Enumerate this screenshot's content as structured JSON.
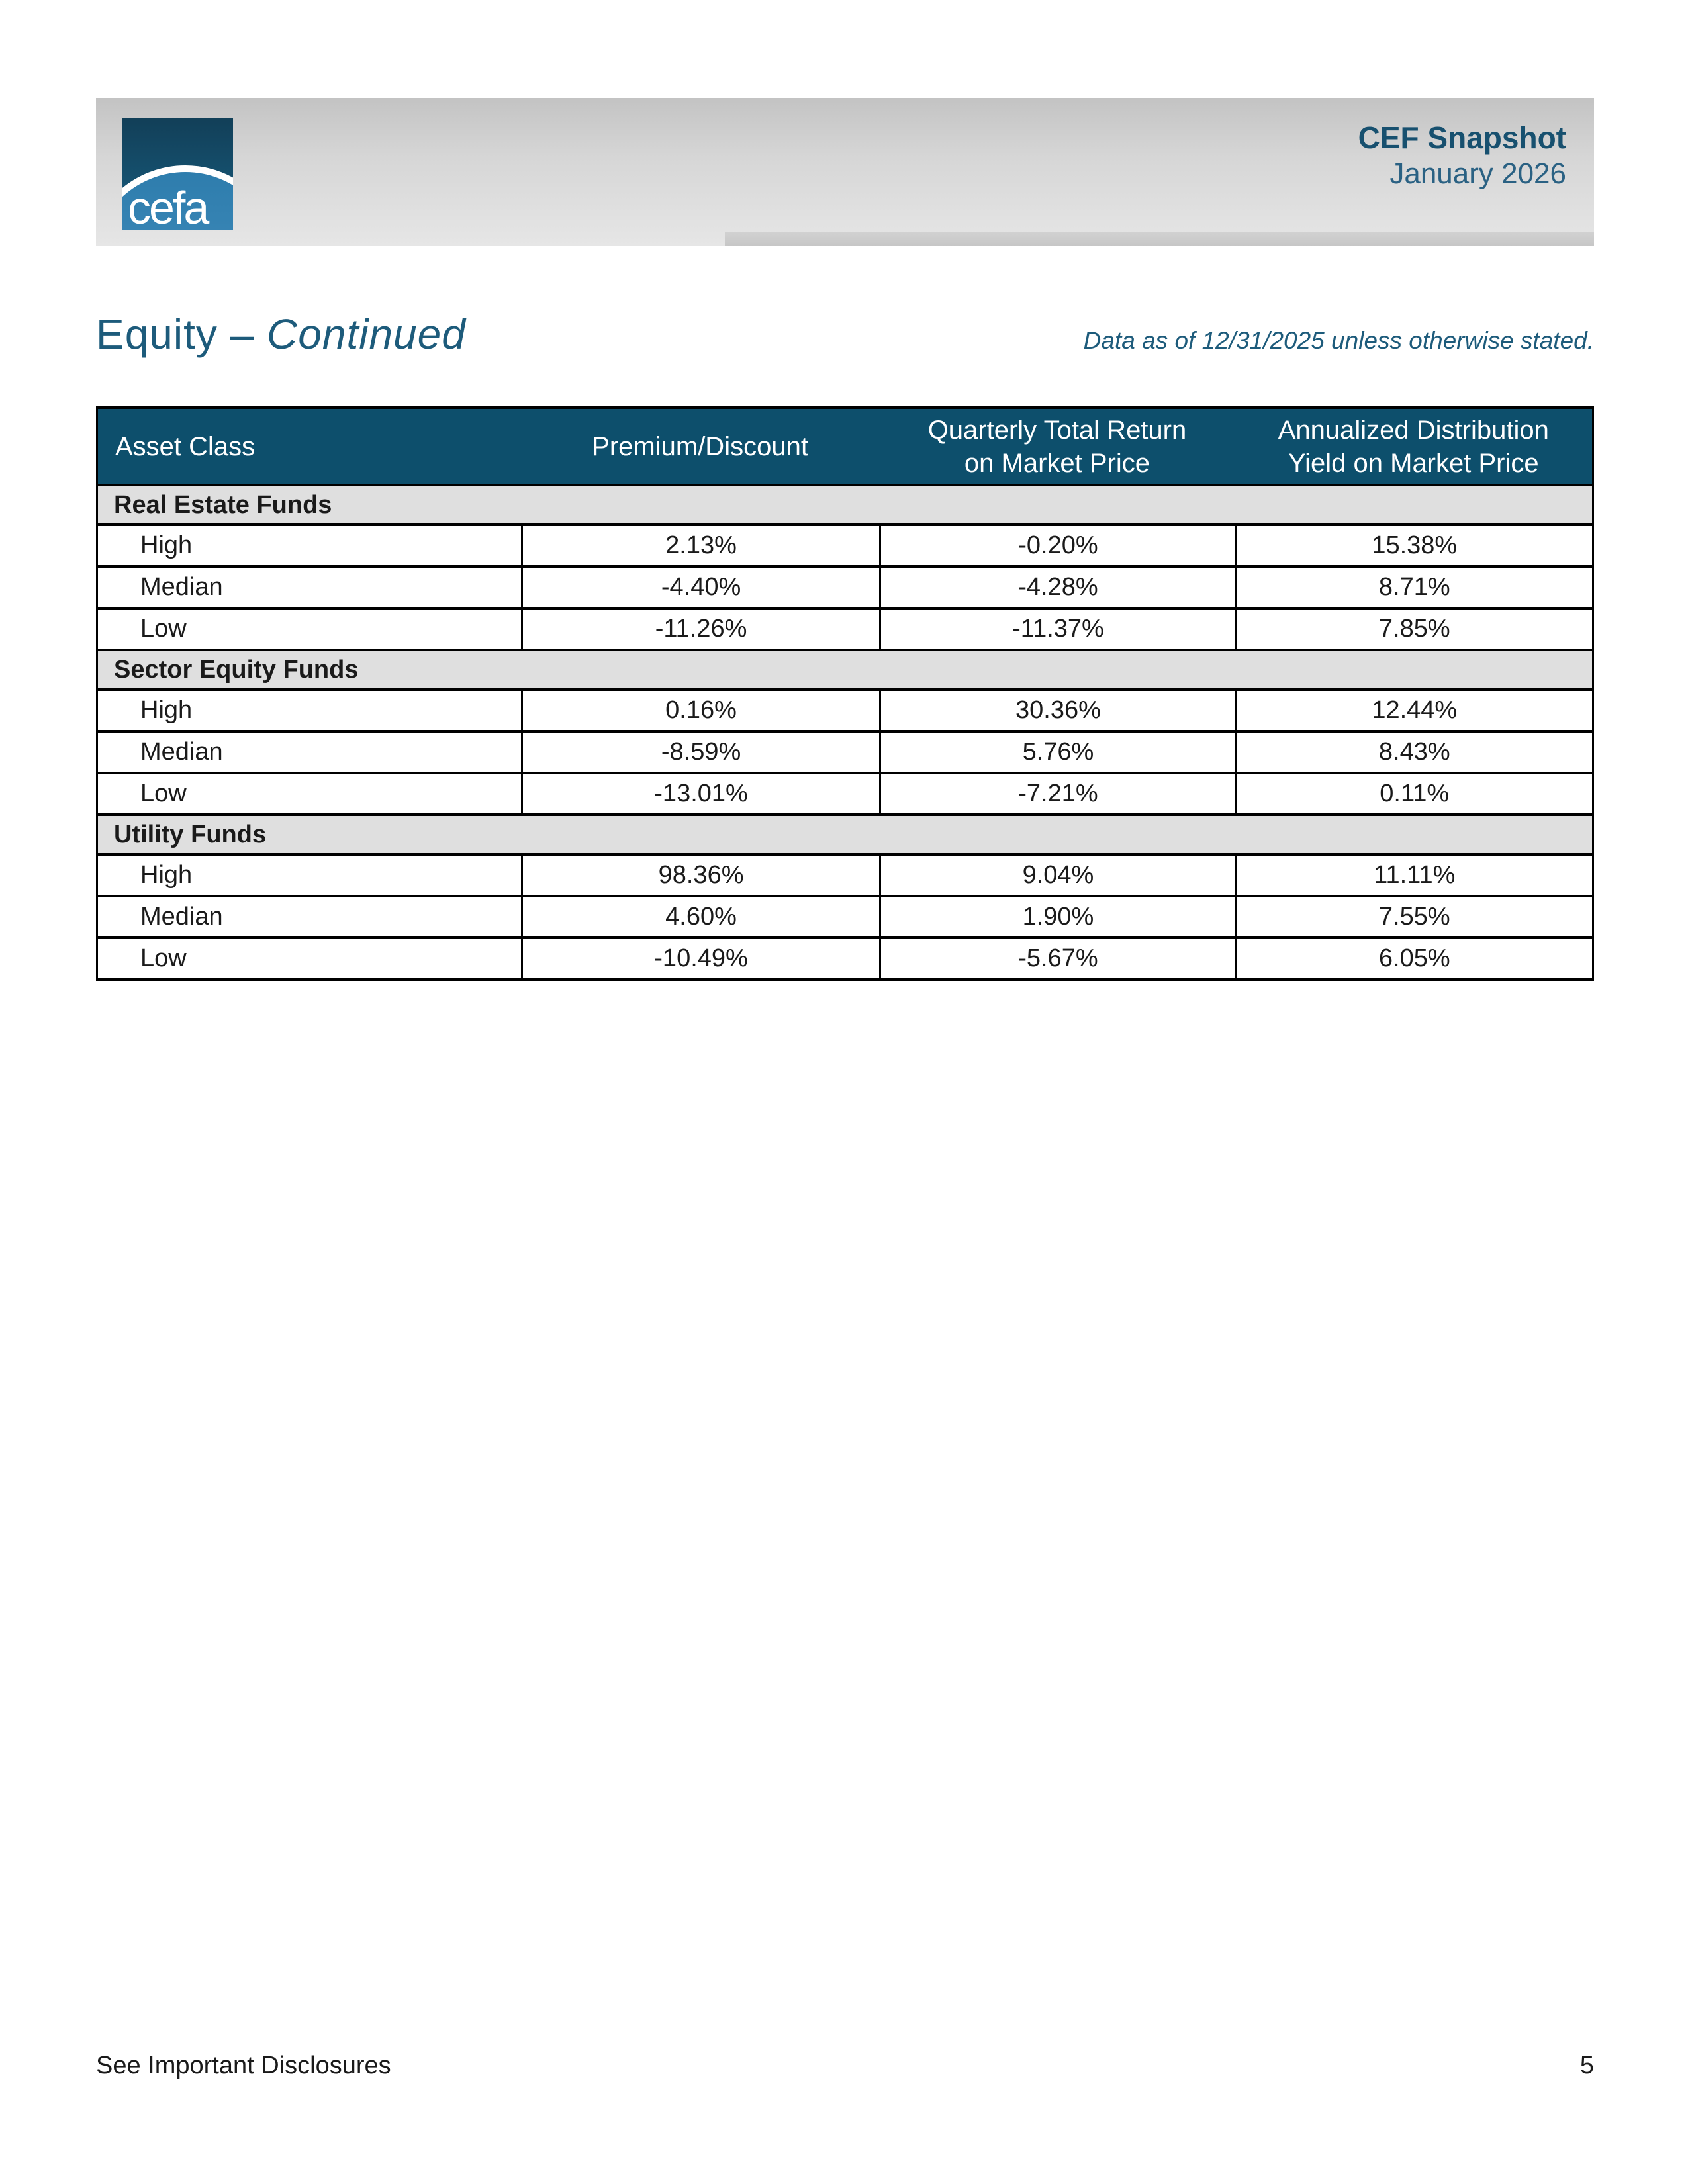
{
  "header": {
    "logo_text": "cefa",
    "product": "CEF Snapshot",
    "date": "January 2026"
  },
  "page": {
    "title_main": "Equity – ",
    "title_em": "Continued",
    "data_note": "Data as of 12/31/2025 unless otherwise stated.",
    "footer_left": "See Important Disclosures",
    "page_number": "5"
  },
  "colors": {
    "table_header_bg": "#0d4f6c",
    "accent_text": "#1d5b7b",
    "section_row_bg": "#dfdfdf",
    "logo_dark_blue": "#15506e",
    "logo_circle_blue": "#2e7dad"
  },
  "table": {
    "columns": [
      "Asset Class",
      "Premium/Discount",
      "Quarterly Total Return\non Market Price",
      "Annualized Distribution\nYield on Market Price"
    ],
    "sections": [
      {
        "name": "Real Estate Funds",
        "rows": [
          {
            "label": "High",
            "values": [
              "2.13%",
              "-0.20%",
              "15.38%"
            ]
          },
          {
            "label": "Median",
            "values": [
              "-4.40%",
              "-4.28%",
              "8.71%"
            ]
          },
          {
            "label": "Low",
            "values": [
              "-11.26%",
              "-11.37%",
              "7.85%"
            ]
          }
        ]
      },
      {
        "name": "Sector Equity Funds",
        "rows": [
          {
            "label": "High",
            "values": [
              "0.16%",
              "30.36%",
              "12.44%"
            ]
          },
          {
            "label": "Median",
            "values": [
              "-8.59%",
              "5.76%",
              "8.43%"
            ]
          },
          {
            "label": "Low",
            "values": [
              "-13.01%",
              "-7.21%",
              "0.11%"
            ]
          }
        ]
      },
      {
        "name": "Utility Funds",
        "rows": [
          {
            "label": "High",
            "values": [
              "98.36%",
              "9.04%",
              "11.11%"
            ]
          },
          {
            "label": "Median",
            "values": [
              "4.60%",
              "1.90%",
              "7.55%"
            ]
          },
          {
            "label": "Low",
            "values": [
              "-10.49%",
              "-5.67%",
              "6.05%"
            ]
          }
        ]
      }
    ]
  }
}
